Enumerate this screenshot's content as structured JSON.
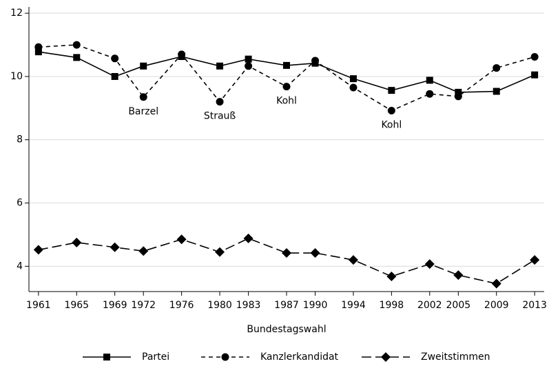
{
  "chart_data": {
    "type": "line",
    "x_label": "Bundestagswahl",
    "x": [
      1961,
      1965,
      1969,
      1972,
      1976,
      1980,
      1983,
      1987,
      1990,
      1994,
      1998,
      2002,
      2005,
      2009,
      2013
    ],
    "series": [
      {
        "name": "Partei",
        "color": "#000000",
        "dash": "solid",
        "marker": "square",
        "values": [
          10.78,
          10.6,
          10.0,
          10.33,
          10.63,
          10.33,
          10.55,
          10.35,
          10.42,
          9.93,
          9.56,
          9.88,
          9.5,
          9.53,
          10.05
        ]
      },
      {
        "name": "Kanzlerkandidat",
        "color": "#000000",
        "dash": "dashed",
        "marker": "circle",
        "values": [
          10.93,
          11.0,
          10.57,
          9.35,
          10.7,
          9.2,
          10.33,
          9.68,
          10.5,
          9.65,
          8.92,
          9.45,
          9.37,
          10.27,
          10.62
        ]
      },
      {
        "name": "Zweitstimmen",
        "color": "#000000",
        "dash": "longdash",
        "marker": "diamond",
        "values": [
          4.52,
          4.75,
          4.6,
          4.48,
          4.85,
          4.45,
          4.88,
          4.42,
          4.42,
          4.2,
          3.68,
          4.07,
          3.72,
          3.45,
          4.2
        ]
      }
    ],
    "annotations": [
      {
        "text": "Barzel",
        "x": 1972
      },
      {
        "text": "Strauß",
        "x": 1980
      },
      {
        "text": "Kohl",
        "x": 1987
      },
      {
        "text": "Kohl",
        "x": 1998
      }
    ],
    "xlim": [
      1960,
      2014
    ],
    "ylim": [
      3.2,
      12.2
    ],
    "xticks": [
      1961,
      1965,
      1969,
      1972,
      1976,
      1980,
      1983,
      1987,
      1990,
      1994,
      1998,
      2002,
      2005,
      2009,
      2013
    ],
    "yticks": [
      4,
      6,
      8,
      10,
      12
    ],
    "grid": true,
    "legend": "bottom"
  }
}
